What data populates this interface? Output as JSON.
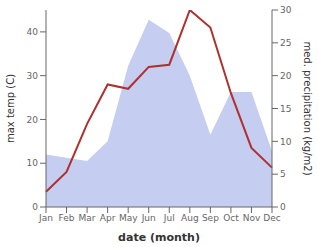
{
  "chart_data": {
    "type": "line",
    "categories": [
      "Jan",
      "Feb",
      "Mar",
      "Apr",
      "May",
      "Jun",
      "Jul",
      "Aug",
      "Sep",
      "Oct",
      "Nov",
      "Dec"
    ],
    "xlabel": "date (month)",
    "ylabel": "max temp (C)",
    "y2label": "med. precipitation (kg/m2)",
    "series": [
      {
        "type": "area",
        "axis": "y2",
        "color": "#c5cdf0",
        "values": [
          8.0,
          7.5,
          7.0,
          10.0,
          21.5,
          28.5,
          26.5,
          20.0,
          11.0,
          17.5,
          17.5,
          8.5
        ]
      },
      {
        "type": "line",
        "color": "#b03030",
        "values": [
          3.5,
          8.0,
          19.0,
          28.0,
          27.0,
          32.0,
          32.5,
          45.0,
          41.0,
          26.0,
          13.5,
          9.0
        ]
      }
    ],
    "ylim": [
      0,
      45
    ],
    "yticks": [
      0,
      10,
      20,
      30,
      40
    ],
    "y2lim": [
      0,
      30
    ],
    "y2ticks": [
      0,
      5,
      10,
      15,
      20,
      25,
      30
    ]
  }
}
